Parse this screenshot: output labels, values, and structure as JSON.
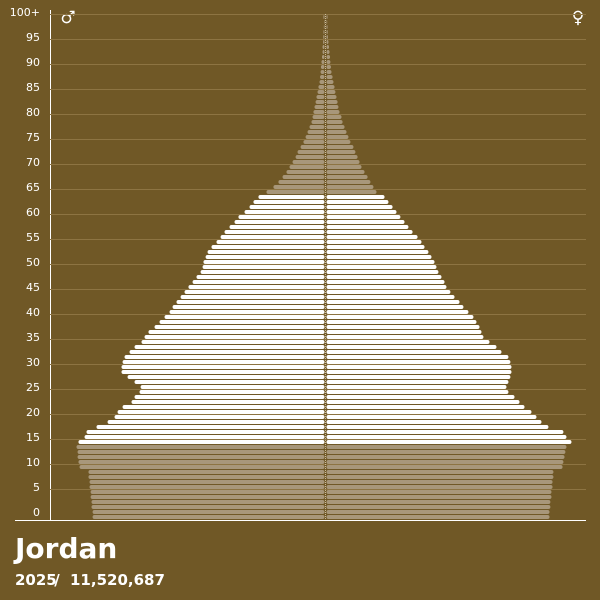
{
  "chart_data": {
    "type": "pyramid",
    "title": "Jordan",
    "year": "2025",
    "total": "11,520,687",
    "categories": [
      "0",
      null,
      null,
      null,
      null,
      "5",
      null,
      null,
      null,
      null,
      "10",
      null,
      null,
      null,
      null,
      "15",
      null,
      null,
      null,
      null,
      "20",
      null,
      null,
      null,
      null,
      "25",
      null,
      null,
      null,
      null,
      "30",
      null,
      null,
      null,
      null,
      "35",
      null,
      null,
      null,
      null,
      "40",
      null,
      null,
      null,
      null,
      "45",
      null,
      null,
      null,
      null,
      "50",
      null,
      null,
      null,
      null,
      "55",
      null,
      null,
      null,
      null,
      "60",
      null,
      null,
      null,
      null,
      "65",
      null,
      null,
      null,
      null,
      "70",
      null,
      null,
      null,
      null,
      "75",
      null,
      null,
      null,
      null,
      "80",
      null,
      null,
      null,
      null,
      "85",
      null,
      null,
      null,
      null,
      "90",
      null,
      null,
      null,
      null,
      "95",
      null,
      null,
      null,
      null,
      "100+"
    ],
    "series": [
      {
        "name": "♂",
        "color": "#a8977a",
        "values": [
          129.9,
          129.9,
          130.5,
          130.5,
          131.0,
          131.0,
          131.6,
          131.6,
          132.2,
          132.2,
          137.2,
          137.8,
          138.3,
          138.3,
          138.9,
          137.8,
          134.4,
          133.3,
          127.7,
          121.5,
          117.6,
          115.9,
          113.1,
          108.1,
          106.4,
          103.6,
          103.0,
          106.4,
          110.3,
          113.7,
          113.7,
          113.1,
          112.0,
          109.2,
          106.4,
          102.5,
          100.8,
          98.6,
          95.2,
          92.4,
          89.6,
          86.8,
          85.1,
          82.9,
          80.6,
          78.4,
          76.2,
          73.9,
          71.7,
          69.4,
          68.3,
          67.8,
          66.6,
          65.5,
          63.3,
          60.5,
          58.2,
          56.0,
          53.2,
          50.4,
          48.2,
          44.8,
          42.0,
          39.8,
          37.0,
          32.5,
          28.6,
          25.8,
          23.5,
          21.3,
          19.6,
          17.9,
          16.2,
          15.1,
          13.4,
          11.8,
          10.6,
          9.5,
          8.4,
          7.3,
          6.7,
          6.2,
          5.6,
          5.0,
          4.5,
          3.9,
          3.4,
          2.8,
          2.5,
          2.2,
          2.0,
          1.7,
          1.4,
          1.1,
          1.1,
          0.8,
          0.7,
          0.6,
          0.4,
          0.3,
          0.6
        ]
      },
      {
        "name": "♀",
        "color": "#a8977a",
        "values": [
          124.9,
          124.9,
          125.4,
          125.4,
          126.0,
          126.0,
          126.6,
          126.6,
          127.1,
          127.1,
          132.2,
          132.7,
          133.3,
          133.8,
          134.4,
          137.2,
          134.4,
          132.7,
          124.3,
          120.4,
          117.6,
          114.8,
          110.9,
          108.1,
          105.3,
          101.9,
          100.8,
          101.9,
          103.0,
          103.6,
          103.6,
          103.0,
          101.9,
          98.0,
          95.2,
          91.3,
          87.9,
          86.8,
          85.7,
          84.0,
          82.3,
          79.5,
          76.7,
          74.5,
          71.7,
          69.4,
          67.2,
          66.1,
          64.4,
          62.7,
          61.6,
          60.5,
          58.8,
          57.1,
          54.9,
          53.2,
          51.0,
          48.2,
          45.9,
          43.7,
          41.4,
          39.2,
          37.0,
          34.7,
          32.5,
          28.0,
          26.3,
          24.6,
          23.0,
          21.3,
          19.6,
          18.5,
          17.4,
          16.2,
          15.1,
          13.4,
          12.3,
          11.2,
          10.1,
          9.0,
          8.4,
          7.3,
          6.7,
          6.2,
          5.6,
          5.0,
          4.5,
          3.9,
          3.4,
          2.8,
          2.5,
          2.2,
          2.0,
          1.7,
          1.4,
          1.1,
          0.8,
          0.7,
          0.6,
          0.4,
          0.6
        ]
      }
    ],
    "highlight": {
      "color": "#ffffff",
      "from": 15,
      "to": 64
    },
    "grid": true
  }
}
